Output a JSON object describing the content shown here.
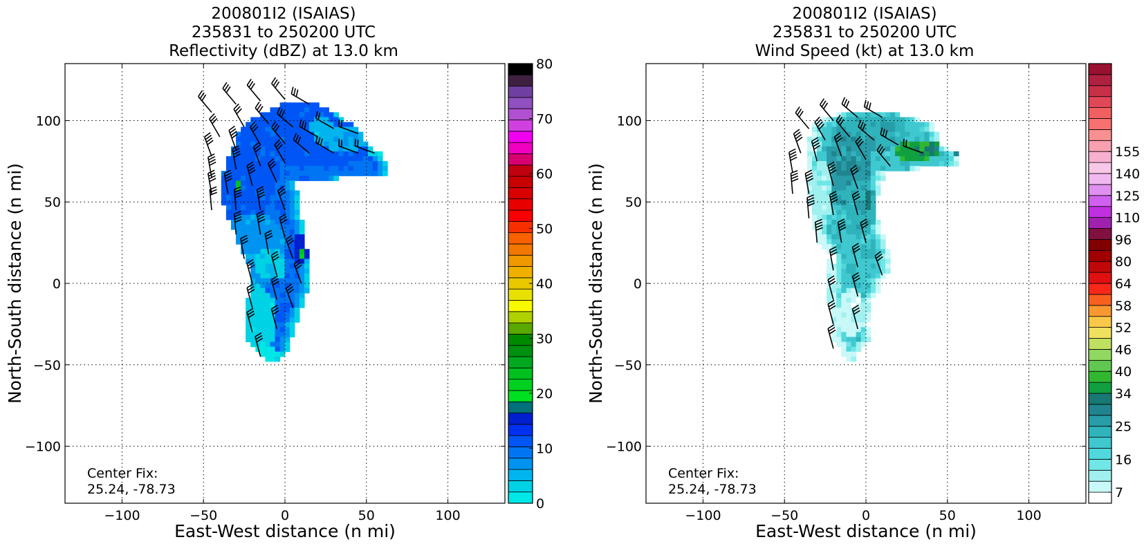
{
  "chart_data": [
    {
      "type": "heatmap",
      "title": [
        "200801I2 (ISAIAS)",
        "235831 to 250200 UTC",
        "Reflectivity (dBZ) at 13.0 km"
      ],
      "xlabel": "East-West distance (n mi)",
      "ylabel": "North-South distance (n mi)",
      "xlim": [
        -135,
        135
      ],
      "ylim": [
        -135,
        135
      ],
      "xticks": [
        -100,
        -50,
        0,
        50,
        100
      ],
      "yticks": [
        -100,
        -50,
        0,
        50,
        100
      ],
      "grid": true,
      "annotation": [
        "Center Fix:",
        "25.24, -78.73"
      ],
      "colorbar": {
        "min": 0,
        "max": 80,
        "tick_values": [
          0,
          10,
          20,
          30,
          40,
          50,
          60,
          70,
          80
        ],
        "colors": [
          "#00e7e7",
          "#00d2e6",
          "#00b5ee",
          "#0093f0",
          "#0075f3",
          "#0056f5",
          "#0030f0",
          "#0020d0",
          "#00707a",
          "#00e020",
          "#00d020",
          "#00c020",
          "#00a820",
          "#009010",
          "#008a00",
          "#5aa800",
          "#b0d000",
          "#f8f800",
          "#e8e000",
          "#e8c800",
          "#f0b000",
          "#f09800",
          "#f07800",
          "#f86000",
          "#f83000",
          "#f80000",
          "#e80000",
          "#d80000",
          "#c80000",
          "#c00010",
          "#d80070",
          "#f000c0",
          "#f000f0",
          "#d040e0",
          "#b050d0",
          "#9050c0",
          "#7040a0",
          "#402040",
          "#000000"
        ]
      },
      "field": {
        "cell": 3,
        "rows": [
          [
            108,
            -3,
            20
          ],
          [
            102,
            -15,
            30
          ],
          [
            96,
            -22,
            40
          ],
          [
            90,
            -28,
            45
          ],
          [
            84,
            -30,
            48
          ],
          [
            78,
            -33,
            58
          ],
          [
            72,
            -35,
            60
          ],
          [
            66,
            -37,
            60
          ],
          [
            60,
            -38,
            5
          ],
          [
            54,
            -38,
            6
          ],
          [
            48,
            -37,
            6
          ],
          [
            42,
            -35,
            8
          ],
          [
            36,
            -32,
            9
          ],
          [
            30,
            -30,
            10
          ],
          [
            24,
            -28,
            11
          ],
          [
            18,
            -25,
            12
          ],
          [
            12,
            -22,
            13
          ],
          [
            6,
            -20,
            13
          ],
          [
            0,
            -20,
            13
          ],
          [
            -6,
            -20,
            12
          ],
          [
            -12,
            -22,
            10
          ],
          [
            -18,
            -23,
            8
          ],
          [
            -24,
            -24,
            6
          ],
          [
            -30,
            -24,
            4
          ],
          [
            -36,
            -22,
            2
          ],
          [
            -42,
            -18,
            0
          ],
          [
            -48,
            -10,
            -6
          ]
        ],
        "zones": [
          {
            "x": -30,
            "y": 70,
            "rx": 25,
            "ry": 35,
            "value": 11
          },
          {
            "x": 20,
            "y": 85,
            "rx": 35,
            "ry": 15,
            "value": 11
          },
          {
            "x": 5,
            "y": 100,
            "rx": 25,
            "ry": 12,
            "value": 11
          },
          {
            "x": 35,
            "y": 88,
            "rx": 18,
            "ry": 8,
            "value": 6
          },
          {
            "x": 58,
            "y": 80,
            "rx": 8,
            "ry": 5,
            "value": 3
          },
          {
            "x": 22,
            "y": 94,
            "rx": 8,
            "ry": 6,
            "value": 5
          },
          {
            "x": -20,
            "y": 20,
            "rx": 20,
            "ry": 22,
            "value": 7
          },
          {
            "x": -10,
            "y": 10,
            "rx": 10,
            "ry": 10,
            "value": 4
          },
          {
            "x": -18,
            "y": -25,
            "rx": 12,
            "ry": 20,
            "value": 3
          },
          {
            "x": -15,
            "y": -45,
            "rx": 10,
            "ry": 6,
            "value": 1
          },
          {
            "x": 8,
            "y": 20,
            "rx": 5,
            "ry": 9,
            "value": 15
          },
          {
            "x": 10,
            "y": 16,
            "rx": 2,
            "ry": 3,
            "value": 22
          },
          {
            "x": -30,
            "y": 58,
            "rx": 2,
            "ry": 2,
            "value": 22
          }
        ]
      },
      "barbs": [
        [
          -45,
          105,
          320,
          30
        ],
        [
          -30,
          110,
          320,
          30
        ],
        [
          -15,
          112,
          320,
          30
        ],
        [
          0,
          113,
          320,
          30
        ],
        [
          15,
          110,
          300,
          25
        ],
        [
          -40,
          90,
          330,
          30
        ],
        [
          -25,
          96,
          330,
          30
        ],
        [
          -10,
          98,
          320,
          30
        ],
        [
          5,
          96,
          310,
          25
        ],
        [
          20,
          90,
          300,
          25
        ],
        [
          30,
          95,
          300,
          20
        ],
        [
          45,
          92,
          290,
          20
        ],
        [
          -45,
          78,
          340,
          35
        ],
        [
          -30,
          82,
          340,
          35
        ],
        [
          -15,
          85,
          330,
          30
        ],
        [
          0,
          86,
          320,
          25
        ],
        [
          15,
          80,
          310,
          25
        ],
        [
          30,
          80,
          300,
          25
        ],
        [
          45,
          80,
          290,
          20
        ],
        [
          55,
          80,
          290,
          20
        ],
        [
          -45,
          65,
          350,
          35
        ],
        [
          -30,
          70,
          350,
          35
        ],
        [
          -15,
          72,
          340,
          30
        ],
        [
          0,
          74,
          330,
          25
        ],
        [
          -45,
          55,
          350,
          35
        ],
        [
          -35,
          55,
          350,
          35
        ],
        [
          -20,
          60,
          345,
          35
        ],
        [
          -5,
          62,
          335,
          30
        ],
        [
          -45,
          45,
          355,
          30
        ],
        [
          -30,
          45,
          355,
          35
        ],
        [
          -15,
          45,
          350,
          35
        ],
        [
          0,
          45,
          340,
          30
        ],
        [
          -30,
          30,
          355,
          35
        ],
        [
          -15,
          30,
          350,
          35
        ],
        [
          0,
          28,
          345,
          30
        ],
        [
          -25,
          15,
          350,
          30
        ],
        [
          -10,
          18,
          350,
          30
        ],
        [
          5,
          15,
          340,
          30
        ],
        [
          -20,
          0,
          345,
          30
        ],
        [
          -5,
          5,
          345,
          30
        ],
        [
          10,
          0,
          340,
          30
        ],
        [
          -20,
          -15,
          345,
          30
        ],
        [
          -5,
          -10,
          345,
          30
        ],
        [
          5,
          -15,
          340,
          30
        ],
        [
          -20,
          -30,
          345,
          30
        ],
        [
          -5,
          -28,
          345,
          30
        ],
        [
          -15,
          -45,
          345,
          30
        ]
      ]
    },
    {
      "type": "heatmap",
      "title": [
        "200801I2 (ISAIAS)",
        "235831 to 250200 UTC",
        "Wind Speed (kt) at 13.0 km"
      ],
      "xlabel": "East-West distance (n mi)",
      "ylabel": "North-South distance (n mi)",
      "xlim": [
        -135,
        135
      ],
      "ylim": [
        -135,
        135
      ],
      "xticks": [
        -100,
        -50,
        0,
        50,
        100
      ],
      "yticks": [
        -100,
        -50,
        0,
        50,
        100
      ],
      "grid": true,
      "annotation": [
        "Center Fix:",
        "25.24, -78.73"
      ],
      "colorbar": {
        "min": 4,
        "max": 162,
        "tick_values": [
          7,
          16,
          25,
          34,
          40,
          46,
          52,
          58,
          64,
          80,
          96,
          110,
          125,
          140,
          155
        ],
        "boundaries": [
          4,
          7,
          10,
          13,
          16,
          19,
          22,
          25,
          28,
          31,
          34,
          37,
          40,
          43,
          46,
          49,
          52,
          55,
          58,
          61,
          64,
          72,
          80,
          88,
          96,
          103,
          110,
          118,
          125,
          133,
          140,
          148,
          155,
          162
        ],
        "colors": [
          "#ffffff",
          "#c8f8f8",
          "#a0f0f0",
          "#70e6e6",
          "#50d8dc",
          "#40c8d0",
          "#30b4bc",
          "#289ca8",
          "#20848e",
          "#187874",
          "#10a040",
          "#30b830",
          "#60c850",
          "#90d860",
          "#c0e060",
          "#f0e060",
          "#f8c848",
          "#f89830",
          "#f86020",
          "#f82818",
          "#e01010",
          "#c00808",
          "#a00000",
          "#800000",
          "#801040",
          "#a020b0",
          "#c030e0",
          "#d060f0",
          "#e090f0",
          "#f0b8f0",
          "#f8c8e8",
          "#f8b0d0",
          "#f8a0b0",
          "#f89090",
          "#f87070",
          "#f06060",
          "#e04858",
          "#c83048",
          "#b02040",
          "#9a1030"
        ]
      },
      "field": {
        "cell": 3,
        "rows": [
          [
            102,
            -20,
            22
          ],
          [
            96,
            -32,
            40
          ],
          [
            90,
            -35,
            42
          ],
          [
            84,
            -35,
            44
          ],
          [
            78,
            -36,
            56
          ],
          [
            72,
            -36,
            55
          ],
          [
            66,
            -36,
            10
          ],
          [
            60,
            -36,
            8
          ],
          [
            54,
            -35,
            6
          ],
          [
            48,
            -35,
            5
          ],
          [
            42,
            -33,
            5
          ],
          [
            36,
            -32,
            6
          ],
          [
            30,
            -30,
            8
          ],
          [
            24,
            -28,
            10
          ],
          [
            18,
            -24,
            12
          ],
          [
            12,
            -22,
            12
          ],
          [
            6,
            -22,
            12
          ],
          [
            0,
            -22,
            8
          ],
          [
            -6,
            -22,
            6
          ],
          [
            -12,
            -22,
            2
          ],
          [
            -18,
            -20,
            0
          ],
          [
            -24,
            -20,
            0
          ],
          [
            -30,
            -20,
            0
          ],
          [
            -36,
            -20,
            0
          ],
          [
            -42,
            -15,
            -5
          ],
          [
            -48,
            -12,
            -8
          ]
        ],
        "zones": [
          {
            "x": 0,
            "y": 90,
            "rx": 22,
            "ry": 12,
            "value": 24
          },
          {
            "x": -12,
            "y": 70,
            "rx": 14,
            "ry": 25,
            "value": 25
          },
          {
            "x": -5,
            "y": 45,
            "rx": 10,
            "ry": 18,
            "value": 22
          },
          {
            "x": -8,
            "y": 20,
            "rx": 8,
            "ry": 10,
            "value": 19
          },
          {
            "x": -28,
            "y": 55,
            "rx": 6,
            "ry": 20,
            "value": 12
          },
          {
            "x": 30,
            "y": 80,
            "rx": 15,
            "ry": 6,
            "value": 34
          },
          {
            "x": 22,
            "y": 78,
            "rx": 6,
            "ry": 4,
            "value": 36
          },
          {
            "x": 40,
            "y": 82,
            "rx": 5,
            "ry": 3,
            "value": 31
          },
          {
            "x": 55,
            "y": 80,
            "rx": 3,
            "ry": 3,
            "value": 28
          },
          {
            "x": -10,
            "y": -20,
            "rx": 8,
            "ry": 15,
            "value": 9
          },
          {
            "x": 0,
            "y": 50,
            "rx": 3,
            "ry": 6,
            "value": 31
          }
        ]
      },
      "barbs": [
        [
          -35,
          95,
          320,
          30
        ],
        [
          -20,
          100,
          320,
          30
        ],
        [
          -5,
          102,
          310,
          25
        ],
        [
          10,
          102,
          300,
          25
        ],
        [
          -40,
          80,
          340,
          35
        ],
        [
          -25,
          88,
          330,
          35
        ],
        [
          -10,
          90,
          320,
          30
        ],
        [
          5,
          88,
          310,
          25
        ],
        [
          20,
          85,
          300,
          25
        ],
        [
          35,
          80,
          290,
          20
        ],
        [
          -45,
          68,
          350,
          35
        ],
        [
          -30,
          75,
          345,
          35
        ],
        [
          -15,
          78,
          340,
          30
        ],
        [
          0,
          76,
          330,
          25
        ],
        [
          15,
          72,
          320,
          25
        ],
        [
          -45,
          55,
          355,
          35
        ],
        [
          -35,
          55,
          350,
          35
        ],
        [
          -20,
          60,
          345,
          35
        ],
        [
          -5,
          58,
          340,
          30
        ],
        [
          -35,
          40,
          355,
          35
        ],
        [
          -20,
          42,
          350,
          35
        ],
        [
          -5,
          42,
          345,
          30
        ],
        [
          -30,
          25,
          355,
          35
        ],
        [
          -15,
          25,
          350,
          35
        ],
        [
          0,
          25,
          345,
          30
        ],
        [
          -20,
          8,
          350,
          30
        ],
        [
          -5,
          10,
          345,
          30
        ],
        [
          10,
          5,
          340,
          30
        ],
        [
          -20,
          -10,
          345,
          30
        ],
        [
          -5,
          -8,
          345,
          30
        ],
        [
          -20,
          -25,
          345,
          30
        ],
        [
          -5,
          -28,
          345,
          30
        ],
        [
          -20,
          -40,
          345,
          30
        ]
      ]
    }
  ]
}
